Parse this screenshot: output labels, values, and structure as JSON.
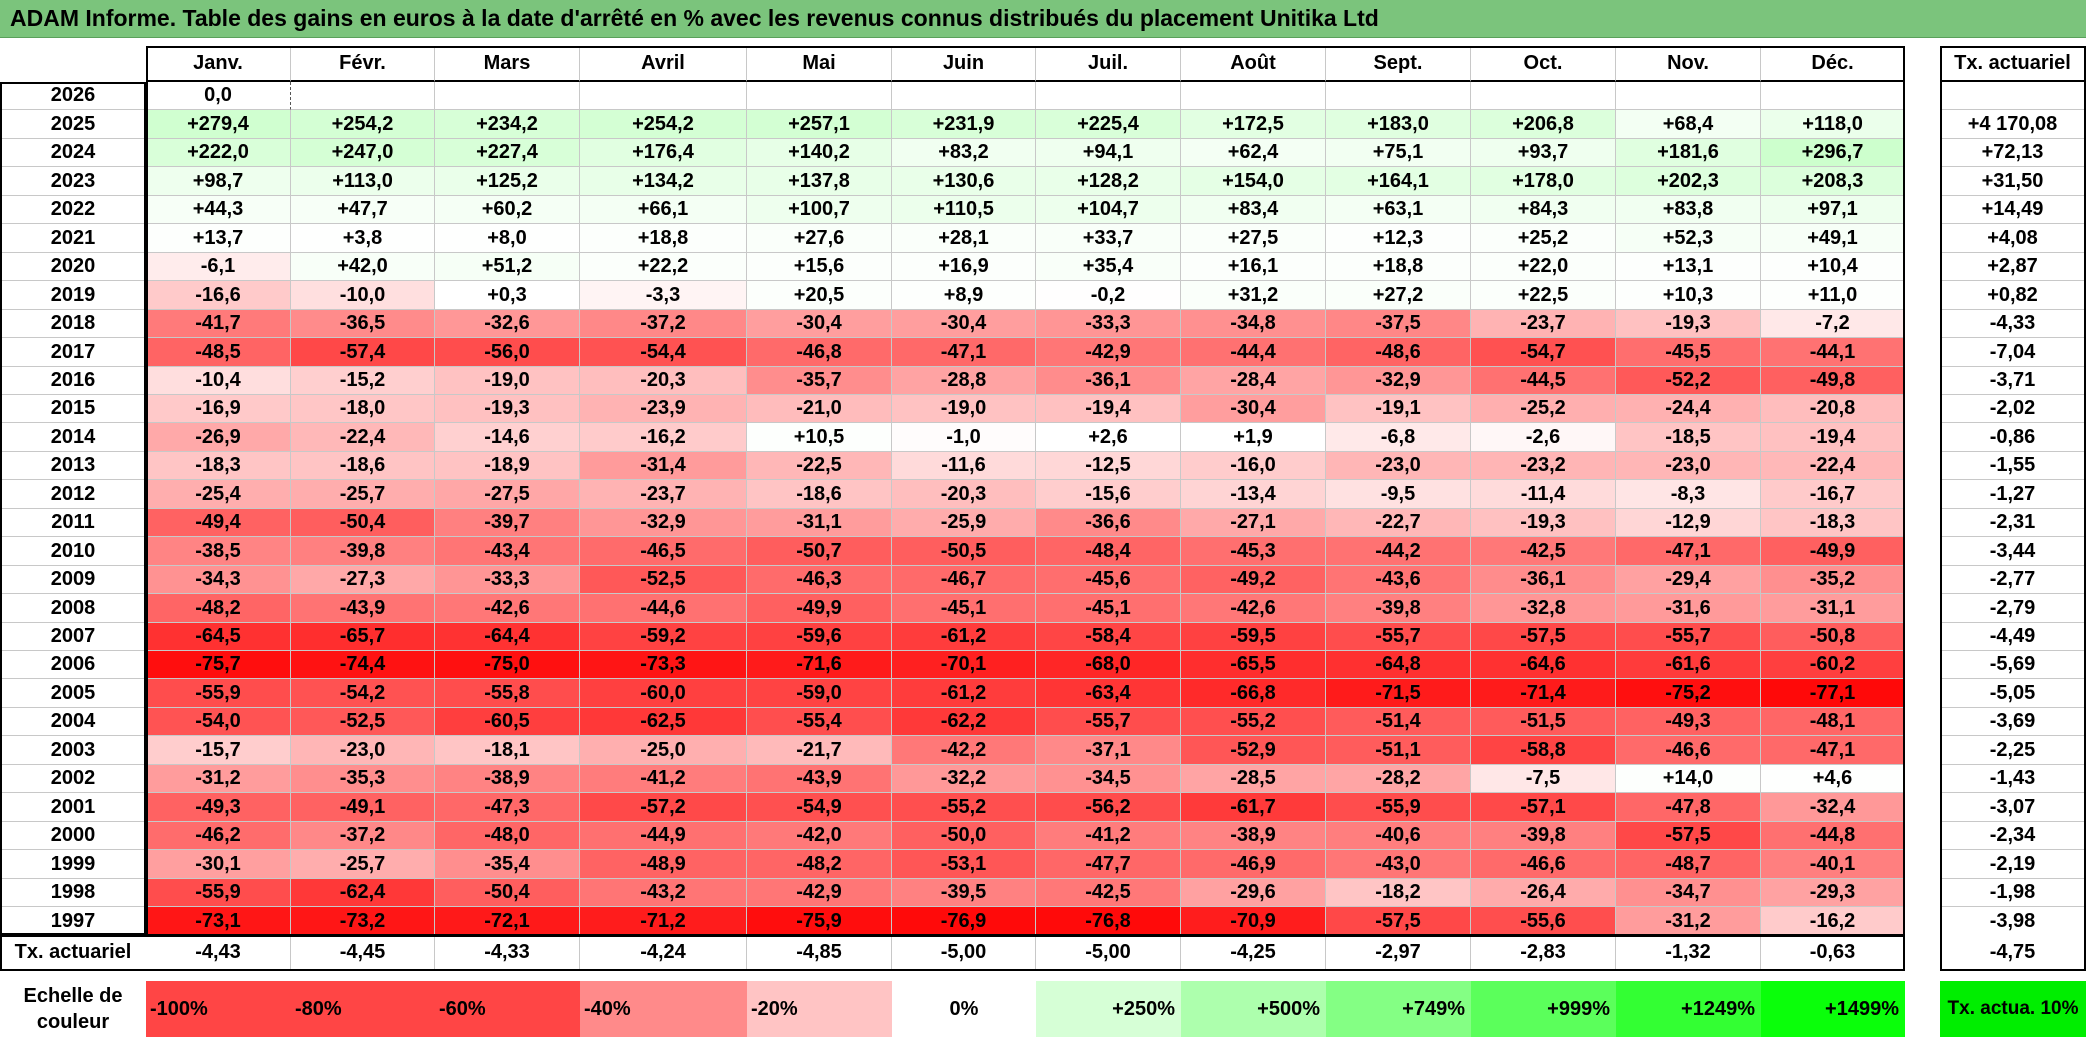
{
  "title": "ADAM Informe. Table des gains en euros à la date d'arrêté en % avec les revenus connus distribués du placement Unitika Ltd",
  "chart_data": {
    "type": "heatmap",
    "title": "ADAM Informe. Table des gains en euros à la date d'arrêté en % avec les revenus connus distribués du placement Unitika Ltd",
    "columns": [
      "Janv.",
      "Févr.",
      "Mars",
      "Avril",
      "Mai",
      "Juin",
      "Juil.",
      "Août",
      "Sept.",
      "Oct.",
      "Nov.",
      "Déc."
    ],
    "total_header": "Tx. actuariel",
    "rows": [
      {
        "year": "2026",
        "values": [
          "0,0",
          "",
          "",
          "",
          "",
          "",
          "",
          "",
          "",
          "",
          "",
          ""
        ],
        "total": ""
      },
      {
        "year": "2025",
        "values": [
          "+279,4",
          "+254,2",
          "+234,2",
          "+254,2",
          "+257,1",
          "+231,9",
          "+225,4",
          "+172,5",
          "+183,0",
          "+206,8",
          "+68,4",
          "+118,0"
        ],
        "total": "+4 170,08"
      },
      {
        "year": "2024",
        "values": [
          "+222,0",
          "+247,0",
          "+227,4",
          "+176,4",
          "+140,2",
          "+83,2",
          "+94,1",
          "+62,4",
          "+75,1",
          "+93,7",
          "+181,6",
          "+296,7"
        ],
        "total": "+72,13"
      },
      {
        "year": "2023",
        "values": [
          "+98,7",
          "+113,0",
          "+125,2",
          "+134,2",
          "+137,8",
          "+130,6",
          "+128,2",
          "+154,0",
          "+164,1",
          "+178,0",
          "+202,3",
          "+208,3"
        ],
        "total": "+31,50"
      },
      {
        "year": "2022",
        "values": [
          "+44,3",
          "+47,7",
          "+60,2",
          "+66,1",
          "+100,7",
          "+110,5",
          "+104,7",
          "+83,4",
          "+63,1",
          "+84,3",
          "+83,8",
          "+97,1"
        ],
        "total": "+14,49"
      },
      {
        "year": "2021",
        "values": [
          "+13,7",
          "+3,8",
          "+8,0",
          "+18,8",
          "+27,6",
          "+28,1",
          "+33,7",
          "+27,5",
          "+12,3",
          "+25,2",
          "+52,3",
          "+49,1"
        ],
        "total": "+4,08"
      },
      {
        "year": "2020",
        "values": [
          "-6,1",
          "+42,0",
          "+51,2",
          "+22,2",
          "+15,6",
          "+16,9",
          "+35,4",
          "+16,1",
          "+18,8",
          "+22,0",
          "+13,1",
          "+10,4"
        ],
        "total": "+2,87"
      },
      {
        "year": "2019",
        "values": [
          "-16,6",
          "-10,0",
          "+0,3",
          "-3,3",
          "+20,5",
          "+8,9",
          "-0,2",
          "+31,2",
          "+27,2",
          "+22,5",
          "+10,3",
          "+11,0"
        ],
        "total": "+0,82"
      },
      {
        "year": "2018",
        "values": [
          "-41,7",
          "-36,5",
          "-32,6",
          "-37,2",
          "-30,4",
          "-30,4",
          "-33,3",
          "-34,8",
          "-37,5",
          "-23,7",
          "-19,3",
          "-7,2"
        ],
        "total": "-4,33"
      },
      {
        "year": "2017",
        "values": [
          "-48,5",
          "-57,4",
          "-56,0",
          "-54,4",
          "-46,8",
          "-47,1",
          "-42,9",
          "-44,4",
          "-48,6",
          "-54,7",
          "-45,5",
          "-44,1"
        ],
        "total": "-7,04"
      },
      {
        "year": "2016",
        "values": [
          "-10,4",
          "-15,2",
          "-19,0",
          "-20,3",
          "-35,7",
          "-28,8",
          "-36,1",
          "-28,4",
          "-32,9",
          "-44,5",
          "-52,2",
          "-49,8"
        ],
        "total": "-3,71"
      },
      {
        "year": "2015",
        "values": [
          "-16,9",
          "-18,0",
          "-19,3",
          "-23,9",
          "-21,0",
          "-19,0",
          "-19,4",
          "-30,4",
          "-19,1",
          "-25,2",
          "-24,4",
          "-20,8"
        ],
        "total": "-2,02"
      },
      {
        "year": "2014",
        "values": [
          "-26,9",
          "-22,4",
          "-14,6",
          "-16,2",
          "+10,5",
          "-1,0",
          "+2,6",
          "+1,9",
          "-6,8",
          "-2,6",
          "-18,5",
          "-19,4"
        ],
        "total": "-0,86"
      },
      {
        "year": "2013",
        "values": [
          "-18,3",
          "-18,6",
          "-18,9",
          "-31,4",
          "-22,5",
          "-11,6",
          "-12,5",
          "-16,0",
          "-23,0",
          "-23,2",
          "-23,0",
          "-22,4"
        ],
        "total": "-1,55"
      },
      {
        "year": "2012",
        "values": [
          "-25,4",
          "-25,7",
          "-27,5",
          "-23,7",
          "-18,6",
          "-20,3",
          "-15,6",
          "-13,4",
          "-9,5",
          "-11,4",
          "-8,3",
          "-16,7"
        ],
        "total": "-1,27"
      },
      {
        "year": "2011",
        "values": [
          "-49,4",
          "-50,4",
          "-39,7",
          "-32,9",
          "-31,1",
          "-25,9",
          "-36,6",
          "-27,1",
          "-22,7",
          "-19,3",
          "-12,9",
          "-18,3"
        ],
        "total": "-2,31"
      },
      {
        "year": "2010",
        "values": [
          "-38,5",
          "-39,8",
          "-43,4",
          "-46,5",
          "-50,7",
          "-50,5",
          "-48,4",
          "-45,3",
          "-44,2",
          "-42,5",
          "-47,1",
          "-49,9"
        ],
        "total": "-3,44"
      },
      {
        "year": "2009",
        "values": [
          "-34,3",
          "-27,3",
          "-33,3",
          "-52,5",
          "-46,3",
          "-46,7",
          "-45,6",
          "-49,2",
          "-43,6",
          "-36,1",
          "-29,4",
          "-35,2"
        ],
        "total": "-2,77"
      },
      {
        "year": "2008",
        "values": [
          "-48,2",
          "-43,9",
          "-42,6",
          "-44,6",
          "-49,9",
          "-45,1",
          "-45,1",
          "-42,6",
          "-39,8",
          "-32,8",
          "-31,6",
          "-31,1"
        ],
        "total": "-2,79"
      },
      {
        "year": "2007",
        "values": [
          "-64,5",
          "-65,7",
          "-64,4",
          "-59,2",
          "-59,6",
          "-61,2",
          "-58,4",
          "-59,5",
          "-55,7",
          "-57,5",
          "-55,7",
          "-50,8"
        ],
        "total": "-4,49"
      },
      {
        "year": "2006",
        "values": [
          "-75,7",
          "-74,4",
          "-75,0",
          "-73,3",
          "-71,6",
          "-70,1",
          "-68,0",
          "-65,5",
          "-64,8",
          "-64,6",
          "-61,6",
          "-60,2"
        ],
        "total": "-5,69"
      },
      {
        "year": "2005",
        "values": [
          "-55,9",
          "-54,2",
          "-55,8",
          "-60,0",
          "-59,0",
          "-61,2",
          "-63,4",
          "-66,8",
          "-71,5",
          "-71,4",
          "-75,2",
          "-77,1"
        ],
        "total": "-5,05"
      },
      {
        "year": "2004",
        "values": [
          "-54,0",
          "-52,5",
          "-60,5",
          "-62,5",
          "-55,4",
          "-62,2",
          "-55,7",
          "-55,2",
          "-51,4",
          "-51,5",
          "-49,3",
          "-48,1"
        ],
        "total": "-3,69"
      },
      {
        "year": "2003",
        "values": [
          "-15,7",
          "-23,0",
          "-18,1",
          "-25,0",
          "-21,7",
          "-42,2",
          "-37,1",
          "-52,9",
          "-51,1",
          "-58,8",
          "-46,6",
          "-47,1"
        ],
        "total": "-2,25"
      },
      {
        "year": "2002",
        "values": [
          "-31,2",
          "-35,3",
          "-38,9",
          "-41,2",
          "-43,9",
          "-32,2",
          "-34,5",
          "-28,5",
          "-28,2",
          "-7,5",
          "+14,0",
          "+4,6"
        ],
        "total": "-1,43"
      },
      {
        "year": "2001",
        "values": [
          "-49,3",
          "-49,1",
          "-47,3",
          "-57,2",
          "-54,9",
          "-55,2",
          "-56,2",
          "-61,7",
          "-55,9",
          "-57,1",
          "-47,8",
          "-32,4"
        ],
        "total": "-3,07"
      },
      {
        "year": "2000",
        "values": [
          "-46,2",
          "-37,2",
          "-48,0",
          "-44,9",
          "-42,0",
          "-50,0",
          "-41,2",
          "-38,9",
          "-40,6",
          "-39,8",
          "-57,5",
          "-44,8"
        ],
        "total": "-2,34"
      },
      {
        "year": "1999",
        "values": [
          "-30,1",
          "-25,7",
          "-35,4",
          "-48,9",
          "-48,2",
          "-53,1",
          "-47,7",
          "-46,9",
          "-43,0",
          "-46,6",
          "-48,7",
          "-40,1"
        ],
        "total": "-2,19"
      },
      {
        "year": "1998",
        "values": [
          "-55,9",
          "-62,4",
          "-50,4",
          "-43,2",
          "-42,9",
          "-39,5",
          "-42,5",
          "-29,6",
          "-18,2",
          "-26,4",
          "-34,7",
          "-29,3"
        ],
        "total": "-1,98"
      },
      {
        "year": "1997",
        "values": [
          "-73,1",
          "-73,2",
          "-72,1",
          "-71,2",
          "-75,9",
          "-76,9",
          "-76,8",
          "-70,9",
          "-57,5",
          "-55,6",
          "-31,2",
          "-16,2"
        ],
        "total": "-3,98"
      }
    ],
    "footer": {
      "label": "Tx. actuariel",
      "values": [
        "-4,43",
        "-4,45",
        "-4,33",
        "-4,24",
        "-4,85",
        "-5,00",
        "-5,00",
        "-4,25",
        "-2,97",
        "-2,83",
        "-1,32",
        "-0,63"
      ],
      "total": "-4,75"
    },
    "legend": {
      "label": "Echelle de couleur",
      "steps": [
        {
          "label": "-100%",
          "color": "#ff4545"
        },
        {
          "label": "-80%",
          "color": "#ff4545"
        },
        {
          "label": "-60%",
          "color": "#ff4545"
        },
        {
          "label": "-40%",
          "color": "#ff8a8a"
        },
        {
          "label": "-20%",
          "color": "#ffc4c4"
        },
        {
          "label": "0%",
          "color": "#ffffff"
        },
        {
          "label": "+250%",
          "color": "#d6ffd6"
        },
        {
          "label": "+500%",
          "color": "#adffad"
        },
        {
          "label": "+749%",
          "color": "#84ff84"
        },
        {
          "label": "+999%",
          "color": "#5bff5b"
        },
        {
          "label": "+1249%",
          "color": "#33ff33"
        },
        {
          "label": "+1499%",
          "color": "#0aff0a"
        }
      ],
      "right_label": "Tx. actua. 10%",
      "right_color": "#00ee00"
    },
    "color_scale": {
      "negative": "#ff0000",
      "zero": "#ffffff",
      "positive": "#00ff00",
      "negative_full": -80,
      "positive_full": 1500
    }
  }
}
